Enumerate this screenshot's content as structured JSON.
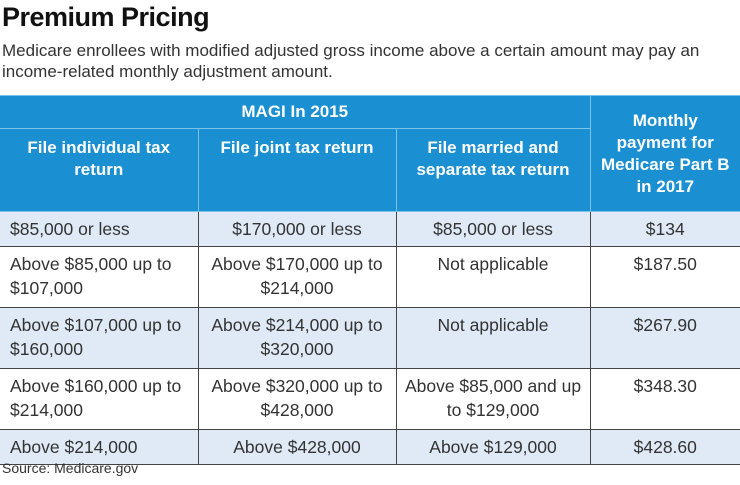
{
  "title": "Premium Pricing",
  "subtitle": "Medicare enrollees with modified adjusted gross income above a certain amount may pay an income-related monthly adjustment amount.",
  "source": "Source: Medicare.gov",
  "colors": {
    "header": "#1a8fd2",
    "shaded_row": "#dfeaf6"
  },
  "chart_data": {
    "type": "table",
    "group_header": "MAGI In 2015",
    "columns": [
      "File individual tax return",
      "File joint tax return",
      "File married and separate tax return",
      "Monthly payment for Medicare Part B in 2017"
    ],
    "rows": [
      [
        "$85,000 or less",
        "$170,000 or less",
        "$85,000 or less",
        "$134"
      ],
      [
        "Above $85,000 up to $107,000",
        "Above $170,000 up to $214,000",
        "Not applicable",
        "$187.50"
      ],
      [
        "Above $107,000 up to $160,000",
        "Above $214,000 up to $320,000",
        "Not applicable",
        "$267.90"
      ],
      [
        "Above $160,000 up to $214,000",
        "Above $320,000 up to $428,000",
        "Above $85,000 and up to $129,000",
        "$348.30"
      ],
      [
        "Above $214,000",
        "Above $428,000",
        "Above $129,000",
        "$428.60"
      ]
    ]
  }
}
